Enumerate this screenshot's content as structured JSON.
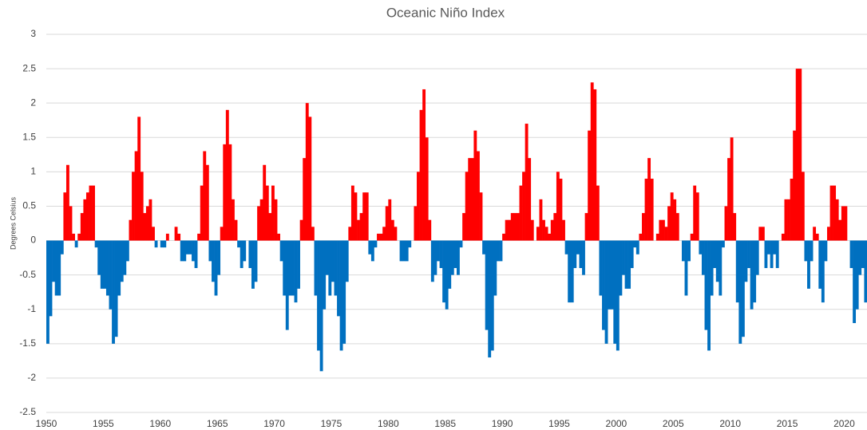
{
  "chart_data": {
    "type": "bar",
    "title": "Oceanic Niño Index",
    "y_label": "Degrees Celsius",
    "positive_color": "#ff0000",
    "negative_color": "#0070c0",
    "grid": true,
    "xlim": [
      1950,
      2022
    ],
    "xticks": [
      1950,
      1955,
      1960,
      1965,
      1970,
      1975,
      1980,
      1985,
      1990,
      1995,
      2000,
      2005,
      2010,
      2015,
      2020
    ],
    "ylim": [
      -2.5,
      3
    ],
    "yticks": [
      -2.5,
      -2,
      -1.5,
      -1,
      -0.5,
      0,
      0.5,
      1,
      1.5,
      2,
      2.5,
      3
    ],
    "x": [
      1950,
      1950.25,
      1950.5,
      1950.75,
      1951,
      1951.25,
      1951.5,
      1951.75,
      1952,
      1952.25,
      1952.5,
      1952.75,
      1953,
      1953.25,
      1953.5,
      1953.75,
      1954,
      1954.25,
      1954.5,
      1954.75,
      1955,
      1955.25,
      1955.5,
      1955.75,
      1956,
      1956.25,
      1956.5,
      1956.75,
      1957,
      1957.25,
      1957.5,
      1957.75,
      1958,
      1958.25,
      1958.5,
      1958.75,
      1959,
      1959.25,
      1959.5,
      1959.75,
      1960,
      1960.25,
      1960.5,
      1960.75,
      1961,
      1961.25,
      1961.5,
      1961.75,
      1962,
      1962.25,
      1962.5,
      1962.75,
      1963,
      1963.25,
      1963.5,
      1963.75,
      1964,
      1964.25,
      1964.5,
      1964.75,
      1965,
      1965.25,
      1965.5,
      1965.75,
      1966,
      1966.25,
      1966.5,
      1966.75,
      1967,
      1967.25,
      1967.5,
      1967.75,
      1968,
      1968.25,
      1968.5,
      1968.75,
      1969,
      1969.25,
      1969.5,
      1969.75,
      1970,
      1970.25,
      1970.5,
      1970.75,
      1971,
      1971.25,
      1971.5,
      1971.75,
      1972,
      1972.25,
      1972.5,
      1972.75,
      1973,
      1973.25,
      1973.5,
      1973.75,
      1974,
      1974.25,
      1974.5,
      1974.75,
      1975,
      1975.25,
      1975.5,
      1975.75,
      1976,
      1976.25,
      1976.5,
      1976.75,
      1977,
      1977.25,
      1977.5,
      1977.75,
      1978,
      1978.25,
      1978.5,
      1978.75,
      1979,
      1979.25,
      1979.5,
      1979.75,
      1980,
      1980.25,
      1980.5,
      1980.75,
      1981,
      1981.25,
      1981.5,
      1981.75,
      1982,
      1982.25,
      1982.5,
      1982.75,
      1983,
      1983.25,
      1983.5,
      1983.75,
      1984,
      1984.25,
      1984.5,
      1984.75,
      1985,
      1985.25,
      1985.5,
      1985.75,
      1986,
      1986.25,
      1986.5,
      1986.75,
      1987,
      1987.25,
      1987.5,
      1987.75,
      1988,
      1988.25,
      1988.5,
      1988.75,
      1989,
      1989.25,
      1989.5,
      1989.75,
      1990,
      1990.25,
      1990.5,
      1990.75,
      1991,
      1991.25,
      1991.5,
      1991.75,
      1992,
      1992.25,
      1992.5,
      1992.75,
      1993,
      1993.25,
      1993.5,
      1993.75,
      1994,
      1994.25,
      1994.5,
      1994.75,
      1995,
      1995.25,
      1995.5,
      1995.75,
      1996,
      1996.25,
      1996.5,
      1996.75,
      1997,
      1997.25,
      1997.5,
      1997.75,
      1998,
      1998.25,
      1998.5,
      1998.75,
      1999,
      1999.25,
      1999.5,
      1999.75,
      2000,
      2000.25,
      2000.5,
      2000.75,
      2001,
      2001.25,
      2001.5,
      2001.75,
      2002,
      2002.25,
      2002.5,
      2002.75,
      2003,
      2003.25,
      2003.5,
      2003.75,
      2004,
      2004.25,
      2004.5,
      2004.75,
      2005,
      2005.25,
      2005.5,
      2005.75,
      2006,
      2006.25,
      2006.5,
      2006.75,
      2007,
      2007.25,
      2007.5,
      2007.75,
      2008,
      2008.25,
      2008.5,
      2008.75,
      2009,
      2009.25,
      2009.5,
      2009.75,
      2010,
      2010.25,
      2010.5,
      2010.75,
      2011,
      2011.25,
      2011.5,
      2011.75,
      2012,
      2012.25,
      2012.5,
      2012.75,
      2013,
      2013.25,
      2013.5,
      2013.75,
      2014,
      2014.25,
      2014.5,
      2014.75,
      2015,
      2015.25,
      2015.5,
      2015.75,
      2016,
      2016.25,
      2016.5,
      2016.75,
      2017,
      2017.25,
      2017.5,
      2017.75,
      2018,
      2018.25,
      2018.5,
      2018.75,
      2019,
      2019.25,
      2019.5,
      2019.75,
      2020,
      2020.25,
      2020.5,
      2020.75,
      2021,
      2021.25,
      2021.5,
      2021.75
    ],
    "values": [
      -1.5,
      -1.1,
      -0.6,
      -0.8,
      -0.8,
      -0.2,
      0.7,
      1.1,
      0.5,
      0.1,
      -0.1,
      0.1,
      0.4,
      0.6,
      0.7,
      0.8,
      0.8,
      -0.1,
      -0.5,
      -0.7,
      -0.7,
      -0.8,
      -1.0,
      -1.5,
      -1.4,
      -0.8,
      -0.6,
      -0.5,
      -0.3,
      0.3,
      1.0,
      1.3,
      1.8,
      1.0,
      0.4,
      0.5,
      0.6,
      0.2,
      -0.1,
      0.0,
      -0.1,
      -0.1,
      0.1,
      0.0,
      0.0,
      0.2,
      0.1,
      -0.3,
      -0.3,
      -0.2,
      -0.2,
      -0.3,
      -0.4,
      0.1,
      0.8,
      1.3,
      1.1,
      -0.3,
      -0.6,
      -0.8,
      -0.5,
      0.2,
      1.4,
      1.9,
      1.4,
      0.6,
      0.3,
      -0.1,
      -0.4,
      -0.3,
      0.0,
      -0.4,
      -0.7,
      -0.6,
      0.5,
      0.6,
      1.1,
      0.8,
      0.4,
      0.8,
      0.6,
      0.1,
      -0.3,
      -0.8,
      -1.3,
      -0.8,
      -0.8,
      -0.9,
      -0.7,
      0.3,
      1.2,
      2.0,
      1.8,
      0.2,
      -0.8,
      -1.6,
      -1.9,
      -1.0,
      -0.5,
      -0.8,
      -0.6,
      -0.8,
      -1.1,
      -1.6,
      -1.5,
      -0.6,
      0.2,
      0.8,
      0.7,
      0.3,
      0.4,
      0.7,
      0.7,
      -0.2,
      -0.3,
      -0.1,
      0.1,
      0.1,
      0.2,
      0.5,
      0.6,
      0.3,
      0.2,
      0.0,
      -0.3,
      -0.3,
      -0.3,
      -0.1,
      0.0,
      0.5,
      1.0,
      1.9,
      2.2,
      1.5,
      0.3,
      -0.6,
      -0.5,
      -0.3,
      -0.4,
      -0.9,
      -1.0,
      -0.7,
      -0.5,
      -0.4,
      -0.5,
      -0.1,
      0.4,
      1.0,
      1.2,
      1.2,
      1.6,
      1.3,
      0.7,
      -0.2,
      -1.3,
      -1.7,
      -1.6,
      -0.8,
      -0.3,
      -0.3,
      0.1,
      0.3,
      0.3,
      0.4,
      0.4,
      0.4,
      0.8,
      1.0,
      1.7,
      1.2,
      0.3,
      0.0,
      0.2,
      0.6,
      0.3,
      0.2,
      0.1,
      0.3,
      0.4,
      1.0,
      0.9,
      0.3,
      -0.2,
      -0.9,
      -0.9,
      -0.4,
      -0.2,
      -0.4,
      -0.5,
      0.4,
      1.6,
      2.3,
      2.2,
      0.8,
      -0.8,
      -1.3,
      -1.5,
      -1.0,
      -1.0,
      -1.5,
      -1.6,
      -0.8,
      -0.5,
      -0.7,
      -0.7,
      -0.4,
      -0.1,
      -0.2,
      0.1,
      0.4,
      0.9,
      1.2,
      0.9,
      0.0,
      0.1,
      0.3,
      0.3,
      0.2,
      0.5,
      0.7,
      0.6,
      0.4,
      0.0,
      -0.3,
      -0.8,
      -0.3,
      0.1,
      0.8,
      0.7,
      -0.2,
      -0.5,
      -1.3,
      -1.6,
      -0.8,
      -0.4,
      -0.6,
      -0.8,
      -0.1,
      0.5,
      1.2,
      1.5,
      0.4,
      -0.9,
      -1.5,
      -1.4,
      -0.6,
      -0.4,
      -1.0,
      -0.9,
      -0.5,
      0.2,
      0.2,
      -0.4,
      -0.2,
      -0.4,
      -0.2,
      -0.4,
      0.0,
      0.1,
      0.6,
      0.6,
      0.9,
      1.6,
      2.5,
      2.5,
      1.0,
      -0.3,
      -0.7,
      -0.3,
      0.2,
      0.1,
      -0.7,
      -0.9,
      -0.3,
      0.2,
      0.8,
      0.8,
      0.6,
      0.3,
      0.5,
      0.5,
      0.0,
      -0.4,
      -1.2,
      -1.0,
      -0.5,
      -0.4,
      -0.9
    ]
  }
}
